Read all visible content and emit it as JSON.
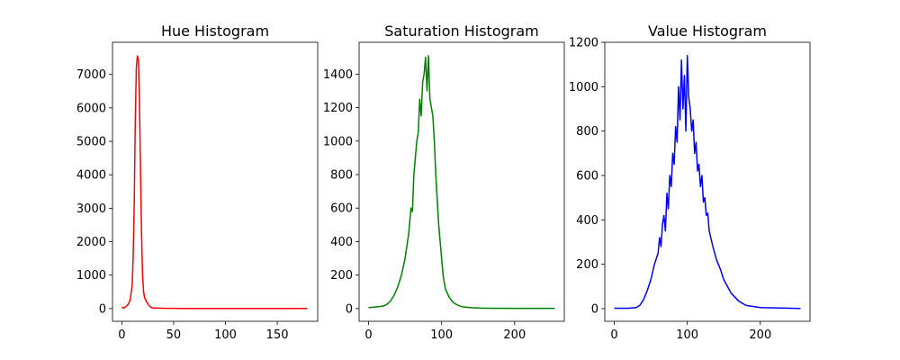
{
  "chart_data": [
    {
      "type": "line",
      "title": "Hue Histogram",
      "xlabel": "",
      "ylabel": "",
      "color": "#ff0000",
      "xlim": [
        -9,
        189
      ],
      "ylim": [
        -380,
        7960
      ],
      "xticks": [
        0,
        50,
        100,
        150
      ],
      "yticks": [
        0,
        1000,
        2000,
        3000,
        4000,
        5000,
        6000,
        7000
      ],
      "grid": false,
      "series": [
        {
          "x": [
            0,
            2,
            4,
            6,
            8,
            10,
            11,
            12,
            13,
            14,
            15,
            16,
            17,
            18,
            19,
            20,
            21,
            22,
            24,
            26,
            28,
            30,
            35,
            40,
            50,
            60,
            80,
            100,
            120,
            140,
            160,
            179
          ],
          "values": [
            40,
            20,
            60,
            120,
            250,
            700,
            1600,
            3200,
            5600,
            7200,
            7550,
            7450,
            6200,
            4200,
            2300,
            1000,
            500,
            320,
            200,
            100,
            40,
            20,
            15,
            10,
            8,
            5,
            5,
            5,
            5,
            5,
            5,
            5
          ]
        }
      ]
    },
    {
      "type": "line",
      "title": "Saturation Histogram",
      "xlabel": "",
      "ylabel": "",
      "color": "#008000",
      "xlim": [
        -13,
        268
      ],
      "ylim": [
        -76,
        1590
      ],
      "xticks": [
        0,
        100,
        200
      ],
      "yticks": [
        0,
        200,
        400,
        600,
        800,
        1000,
        1200,
        1400
      ],
      "grid": false,
      "series": [
        {
          "x": [
            0,
            10,
            20,
            25,
            30,
            35,
            40,
            45,
            50,
            55,
            58,
            60,
            62,
            64,
            66,
            68,
            70,
            72,
            74,
            76,
            78,
            80,
            82,
            84,
            86,
            88,
            90,
            92,
            94,
            96,
            98,
            100,
            102,
            105,
            110,
            115,
            120,
            125,
            130,
            140,
            150,
            160,
            200,
            255
          ],
          "values": [
            5,
            10,
            15,
            25,
            45,
            80,
            130,
            200,
            300,
            450,
            600,
            580,
            800,
            900,
            1000,
            1050,
            1250,
            1150,
            1350,
            1400,
            1500,
            1300,
            1510,
            1250,
            1200,
            1150,
            1000,
            800,
            650,
            500,
            400,
            300,
            200,
            120,
            70,
            40,
            25,
            15,
            10,
            5,
            3,
            2,
            1,
            1
          ]
        }
      ]
    },
    {
      "type": "line",
      "title": "Value Histogram",
      "xlabel": "",
      "ylabel": "",
      "color": "#0000ff",
      "xlim": [
        -13,
        268
      ],
      "ylim": [
        -57,
        1200
      ],
      "xticks": [
        0,
        100,
        200
      ],
      "yticks": [
        0,
        200,
        400,
        600,
        800,
        1000,
        1200
      ],
      "grid": false,
      "series": [
        {
          "x": [
            0,
            20,
            30,
            35,
            40,
            45,
            50,
            55,
            60,
            62,
            64,
            66,
            68,
            70,
            72,
            74,
            76,
            78,
            80,
            82,
            84,
            86,
            88,
            90,
            92,
            94,
            96,
            98,
            100,
            102,
            104,
            106,
            108,
            110,
            112,
            114,
            116,
            118,
            120,
            122,
            124,
            126,
            128,
            130,
            135,
            140,
            145,
            150,
            155,
            160,
            170,
            180,
            200,
            255
          ],
          "values": [
            2,
            2,
            5,
            15,
            40,
            80,
            130,
            200,
            250,
            320,
            280,
            380,
            420,
            350,
            520,
            450,
            600,
            550,
            700,
            650,
            820,
            750,
            1000,
            850,
            1120,
            900,
            1050,
            800,
            1140,
            950,
            900,
            800,
            850,
            700,
            750,
            620,
            650,
            550,
            600,
            480,
            500,
            420,
            430,
            350,
            280,
            220,
            180,
            130,
            100,
            70,
            35,
            15,
            5,
            1
          ]
        }
      ]
    }
  ]
}
